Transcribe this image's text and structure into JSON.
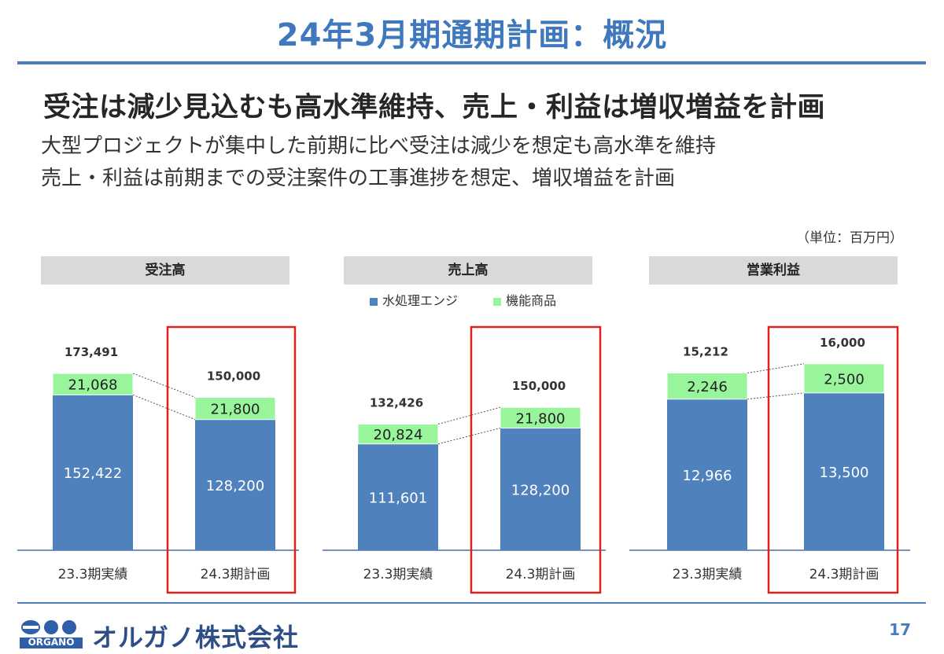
{
  "title": "24年3月期通期計画：概況",
  "headline": "受注は減少見込むも高水準維持、売上・利益は増収増益を計画",
  "subtext": [
    "大型プロジェクトが集中した前期に比べ受注は減少を想定も高水準を維持",
    "売上・利益は前期までの受注案件の工事進捗を想定、増収増益を計画"
  ],
  "unit": "（単位：百万円）",
  "legend": {
    "series1": "水処理エンジ",
    "series2": "機能商品"
  },
  "colors": {
    "water": "#4f81bd",
    "products": "#98f59b",
    "highlight": "#e0201b",
    "title": "#3f78bd"
  },
  "footer": {
    "company": "オルガノ株式会社",
    "logo_text": "ORGANO",
    "page": "17"
  },
  "chart_data": [
    {
      "type": "bar",
      "title": "受注高",
      "categories": [
        "23.3期実績",
        "24.3期計画"
      ],
      "series": [
        {
          "name": "水処理エンジ",
          "values": [
            152422,
            128200
          ]
        },
        {
          "name": "機能商品",
          "values": [
            21068,
            21800
          ]
        }
      ],
      "totals": [
        "173,491",
        "150,000"
      ],
      "labels": [
        [
          "152,422",
          "128,200"
        ],
        [
          "21,068",
          "21,800"
        ]
      ],
      "ylim": [
        0,
        200000
      ],
      "highlight_index": 1
    },
    {
      "type": "bar",
      "title": "売上高",
      "categories": [
        "23.3期実績",
        "24.3期計画"
      ],
      "series": [
        {
          "name": "水処理エンジ",
          "values": [
            111601,
            128200
          ]
        },
        {
          "name": "機能商品",
          "values": [
            20824,
            21800
          ]
        }
      ],
      "totals": [
        "132,426",
        "150,000"
      ],
      "labels": [
        [
          "111,601",
          "128,200"
        ],
        [
          "20,824",
          "21,800"
        ]
      ],
      "ylim": [
        0,
        200000
      ],
      "highlight_index": 1
    },
    {
      "type": "bar",
      "title": "営業利益",
      "categories": [
        "23.3期実績",
        "24.3期計画"
      ],
      "series": [
        {
          "name": "水処理エンジ",
          "values": [
            12966,
            13500
          ]
        },
        {
          "name": "機能商品",
          "values": [
            2246,
            2500
          ]
        }
      ],
      "totals": [
        "15,212",
        "16,000"
      ],
      "labels": [
        [
          "12,966",
          "13,500"
        ],
        [
          "2,246",
          "2,500"
        ]
      ],
      "ylim": [
        0,
        20000
      ],
      "highlight_index": 1
    }
  ]
}
